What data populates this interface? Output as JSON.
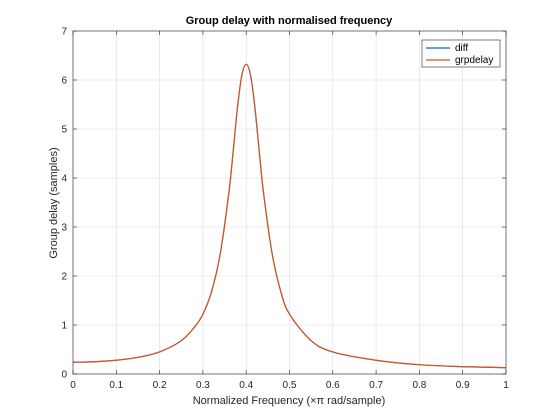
{
  "chart_data": {
    "type": "line",
    "title": "Group delay with normalised frequency",
    "xlabel": "Normalized Frequency (×π rad/sample)",
    "ylabel": "Group delay (samples)",
    "xlim": [
      0,
      1
    ],
    "ylim": [
      0,
      7
    ],
    "xticks": [
      0,
      0.1,
      0.2,
      0.3,
      0.4,
      0.5,
      0.6,
      0.7,
      0.8,
      0.9,
      1
    ],
    "xtick_labels": [
      "0",
      "0.1",
      "0.2",
      "0.3",
      "0.4",
      "0.5",
      "0.6",
      "0.7",
      "0.8",
      "0.9",
      "1"
    ],
    "yticks": [
      0,
      1,
      2,
      3,
      4,
      5,
      6,
      7
    ],
    "ytick_labels": [
      "0",
      "1",
      "2",
      "3",
      "4",
      "5",
      "6",
      "7"
    ],
    "grid": true,
    "legend_position": "top-right",
    "x": [
      0,
      0.05,
      0.1,
      0.15,
      0.2,
      0.25,
      0.28,
      0.3,
      0.32,
      0.34,
      0.36,
      0.37,
      0.38,
      0.39,
      0.4,
      0.41,
      0.42,
      0.43,
      0.44,
      0.46,
      0.48,
      0.5,
      0.55,
      0.6,
      0.7,
      0.8,
      0.9,
      1.0
    ],
    "series": [
      {
        "name": "diff",
        "color": "#0072BD",
        "values": [
          0.24,
          0.25,
          0.28,
          0.34,
          0.45,
          0.68,
          0.95,
          1.22,
          1.68,
          2.45,
          3.7,
          4.55,
          5.45,
          6.1,
          6.32,
          6.1,
          5.45,
          4.55,
          3.7,
          2.45,
          1.68,
          1.22,
          0.68,
          0.45,
          0.28,
          0.19,
          0.15,
          0.13
        ]
      },
      {
        "name": "grpdelay",
        "color": "#D95319",
        "values": [
          0.24,
          0.25,
          0.28,
          0.34,
          0.45,
          0.68,
          0.95,
          1.22,
          1.68,
          2.45,
          3.7,
          4.55,
          5.45,
          6.1,
          6.32,
          6.1,
          5.45,
          4.55,
          3.7,
          2.45,
          1.68,
          1.22,
          0.68,
          0.45,
          0.28,
          0.19,
          0.15,
          0.13
        ]
      }
    ]
  }
}
